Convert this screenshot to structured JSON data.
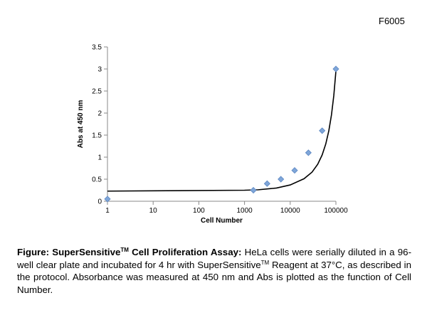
{
  "figure_code": "F6005",
  "caption": {
    "title_main": "Figure: SuperSensitive",
    "title_sup": "TM",
    "title_rest": " Cell Proliferation Assay:",
    "body_a": " HeLa cells were serially diluted in a 96-well clear plate and incubated for 4 hr with SuperSensitive",
    "body_sup": "TM",
    "body_b": " Reagent at 37°C, as described in the protocol. Absorbance was measured at 450 nm and Abs is plotted as the function of Cell Number."
  },
  "chart_data": {
    "type": "scatter",
    "xlabel": "Cell Number",
    "ylabel": "Abs at 450 nm",
    "xscale": "log",
    "xlim": [
      1,
      100000
    ],
    "ylim": [
      0,
      3.5
    ],
    "xticks": [
      "1",
      "10",
      "100",
      "1000",
      "10000",
      "100000"
    ],
    "yticks": [
      "0",
      "0.5",
      "1",
      "1.5",
      "2",
      "2.5",
      "3",
      "3.5"
    ],
    "grid": false,
    "legend": "none",
    "marker_color": "#7fa6d9",
    "series": [
      {
        "marker": "diamond",
        "x": [
          1,
          1563,
          3125,
          6250,
          12500,
          25000,
          50000,
          100000
        ],
        "y": [
          0.05,
          0.25,
          0.4,
          0.5,
          0.7,
          1.1,
          1.6,
          3.0
        ]
      }
    ],
    "trendline": {
      "type": "exponential",
      "x": [
        1,
        1000,
        2000,
        5000,
        10000,
        20000,
        30000,
        40000,
        50000,
        60000,
        70000,
        80000,
        90000,
        100000
      ],
      "y": [
        0.23,
        0.25,
        0.26,
        0.3,
        0.37,
        0.51,
        0.66,
        0.84,
        1.05,
        1.3,
        1.6,
        1.96,
        2.4,
        2.95
      ]
    }
  }
}
